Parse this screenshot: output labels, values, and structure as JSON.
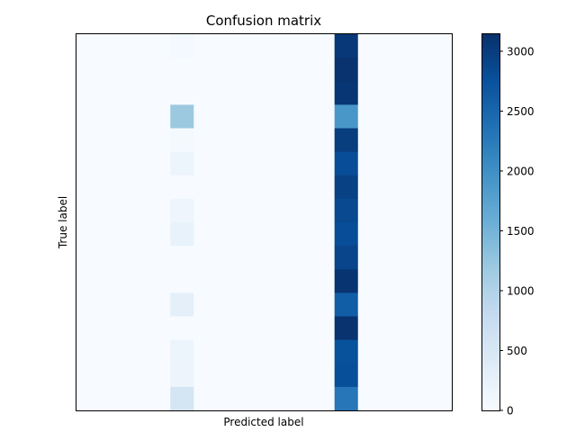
{
  "chart_data": {
    "type": "heatmap",
    "title": "Confusion matrix",
    "xlabel": "Predicted label",
    "ylabel": "True label",
    "colormap": "Blues",
    "color_range": [
      0,
      3150
    ],
    "colorbar_ticks": [
      0,
      500,
      1000,
      1500,
      2000,
      2500,
      3000
    ],
    "colorbar_tick_labels": [
      "0",
      "500",
      "1000",
      "1500",
      "2000",
      "2500",
      "3000"
    ],
    "n_rows": 16,
    "n_cols": 16,
    "grid": false,
    "nonzero_cells": [
      {
        "row": 0,
        "col": 4,
        "value": 60
      },
      {
        "row": 0,
        "col": 11,
        "value": 3050
      },
      {
        "row": 1,
        "col": 11,
        "value": 3120
      },
      {
        "row": 2,
        "col": 11,
        "value": 3080
      },
      {
        "row": 3,
        "col": 4,
        "value": 1200
      },
      {
        "row": 3,
        "col": 11,
        "value": 1900
      },
      {
        "row": 4,
        "col": 4,
        "value": 40
      },
      {
        "row": 4,
        "col": 11,
        "value": 3000
      },
      {
        "row": 5,
        "col": 4,
        "value": 170
      },
      {
        "row": 5,
        "col": 11,
        "value": 2800
      },
      {
        "row": 6,
        "col": 11,
        "value": 2950
      },
      {
        "row": 7,
        "col": 4,
        "value": 140
      },
      {
        "row": 7,
        "col": 11,
        "value": 2850
      },
      {
        "row": 8,
        "col": 4,
        "value": 230
      },
      {
        "row": 8,
        "col": 11,
        "value": 2800
      },
      {
        "row": 9,
        "col": 11,
        "value": 2900
      },
      {
        "row": 10,
        "col": 11,
        "value": 3100
      },
      {
        "row": 11,
        "col": 4,
        "value": 290
      },
      {
        "row": 11,
        "col": 11,
        "value": 2600
      },
      {
        "row": 12,
        "col": 11,
        "value": 3120
      },
      {
        "row": 13,
        "col": 4,
        "value": 150
      },
      {
        "row": 13,
        "col": 11,
        "value": 2750
      },
      {
        "row": 14,
        "col": 4,
        "value": 160
      },
      {
        "row": 14,
        "col": 11,
        "value": 2780
      },
      {
        "row": 15,
        "col": 4,
        "value": 550
      },
      {
        "row": 15,
        "col": 11,
        "value": 2300
      }
    ]
  }
}
